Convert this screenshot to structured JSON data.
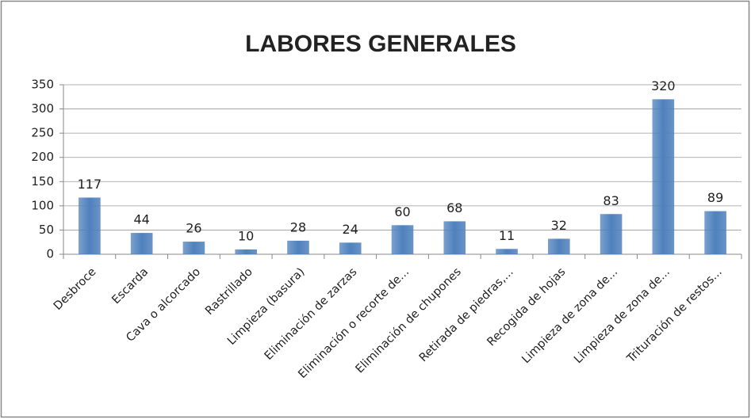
{
  "chart_data": {
    "type": "bar",
    "title": "LABORES GENERALES",
    "categories": [
      "Desbroce",
      "Escarda",
      "Cava o alcorcado",
      "Rastrillado",
      "Limpieza (basura)",
      "Eliminación de zarzas",
      "Eliminación o recorte de...",
      "Eliminación de chupones",
      "Retirada de piedras,...",
      "Recogida de hojas",
      "Limpieza de zona de...",
      "Limpieza de zona de...",
      "Trituración de restos..."
    ],
    "values": [
      117,
      44,
      26,
      10,
      28,
      24,
      60,
      68,
      11,
      32,
      83,
      320,
      89
    ],
    "color": "#4f81bd",
    "ylim": [
      0,
      350
    ],
    "yticks": [
      0,
      50,
      100,
      150,
      200,
      250,
      300,
      350
    ],
    "grid": true
  }
}
